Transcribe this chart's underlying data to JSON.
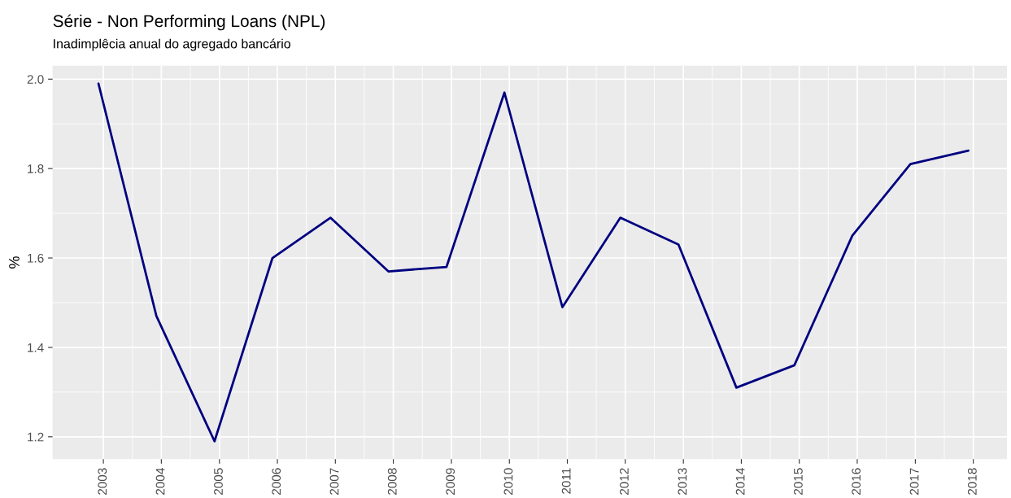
{
  "chart_data": {
    "type": "line",
    "title": "Série - Non Performing Loans (NPL)",
    "subtitle": "Inadimplêcia anual do agregado bancário",
    "ylabel": "%",
    "x": [
      "2002-12-01",
      "2003-12-01",
      "2004-12-01",
      "2005-12-01",
      "2006-12-01",
      "2007-12-01",
      "2008-12-01",
      "2009-12-01",
      "2010-12-01",
      "2011-12-01",
      "2012-12-01",
      "2013-12-01",
      "2014-12-01",
      "2015-12-01",
      "2016-12-01",
      "2017-12-01"
    ],
    "series": [
      {
        "color": "#000080",
        "values": [
          1.99,
          1.47,
          1.19,
          1.6,
          1.69,
          1.57,
          1.58,
          1.97,
          1.49,
          1.69,
          1.63,
          1.31,
          1.36,
          1.65,
          1.81,
          1.84
        ]
      }
    ],
    "xlim": [
      "2002-02-15",
      "2018-08-01"
    ],
    "xticks": [
      "2003",
      "2004",
      "2005",
      "2006",
      "2007",
      "2008",
      "2009",
      "2010",
      "2011",
      "2012",
      "2013",
      "2014",
      "2015",
      "2016",
      "2017",
      "2018"
    ],
    "ylim": [
      1.15,
      2.03
    ],
    "yticks": [
      {
        "value": 1.2,
        "label": "1.2"
      },
      {
        "value": 1.4,
        "label": "1.4"
      },
      {
        "value": 1.6,
        "label": "1.6"
      },
      {
        "value": 1.8,
        "label": "1.8"
      },
      {
        "value": 2.0,
        "label": "2.0"
      }
    ],
    "grid": true,
    "line_style": "solid"
  }
}
